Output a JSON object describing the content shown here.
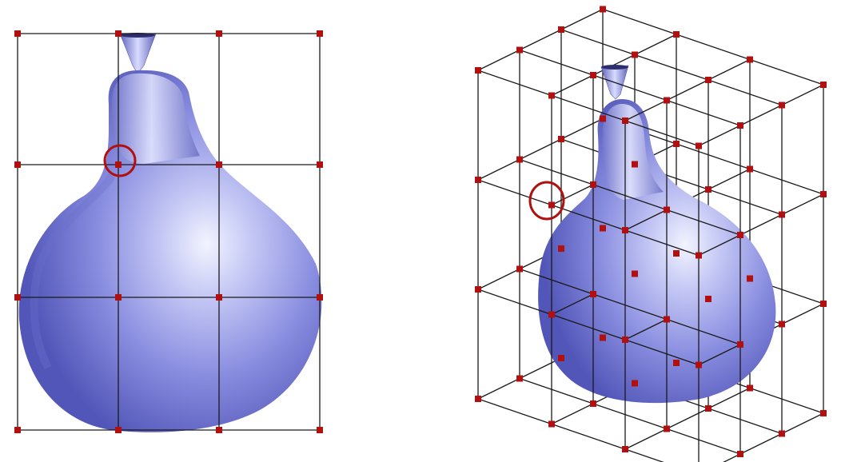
{
  "figure": {
    "left_panel": {
      "view": "front",
      "lattice": {
        "columns": 4,
        "rows": 4
      },
      "highlighted_control_point": {
        "column": 2,
        "row": 2
      }
    },
    "right_panel": {
      "view": "perspective",
      "lattice": {
        "columns": 4,
        "rows": 4,
        "layers": 4
      },
      "highlighted_control_point": {
        "column": 1,
        "row": 2,
        "layer": 2
      }
    }
  },
  "colors": {
    "background": "#ffffff",
    "grid_line": "#1a1a1a",
    "control_point": "#b01010",
    "highlight_ring": "#b01010",
    "surface_light": "#eef0ff",
    "surface_mid": "#8a8ee0",
    "surface_dark": "#4a4eb0"
  }
}
